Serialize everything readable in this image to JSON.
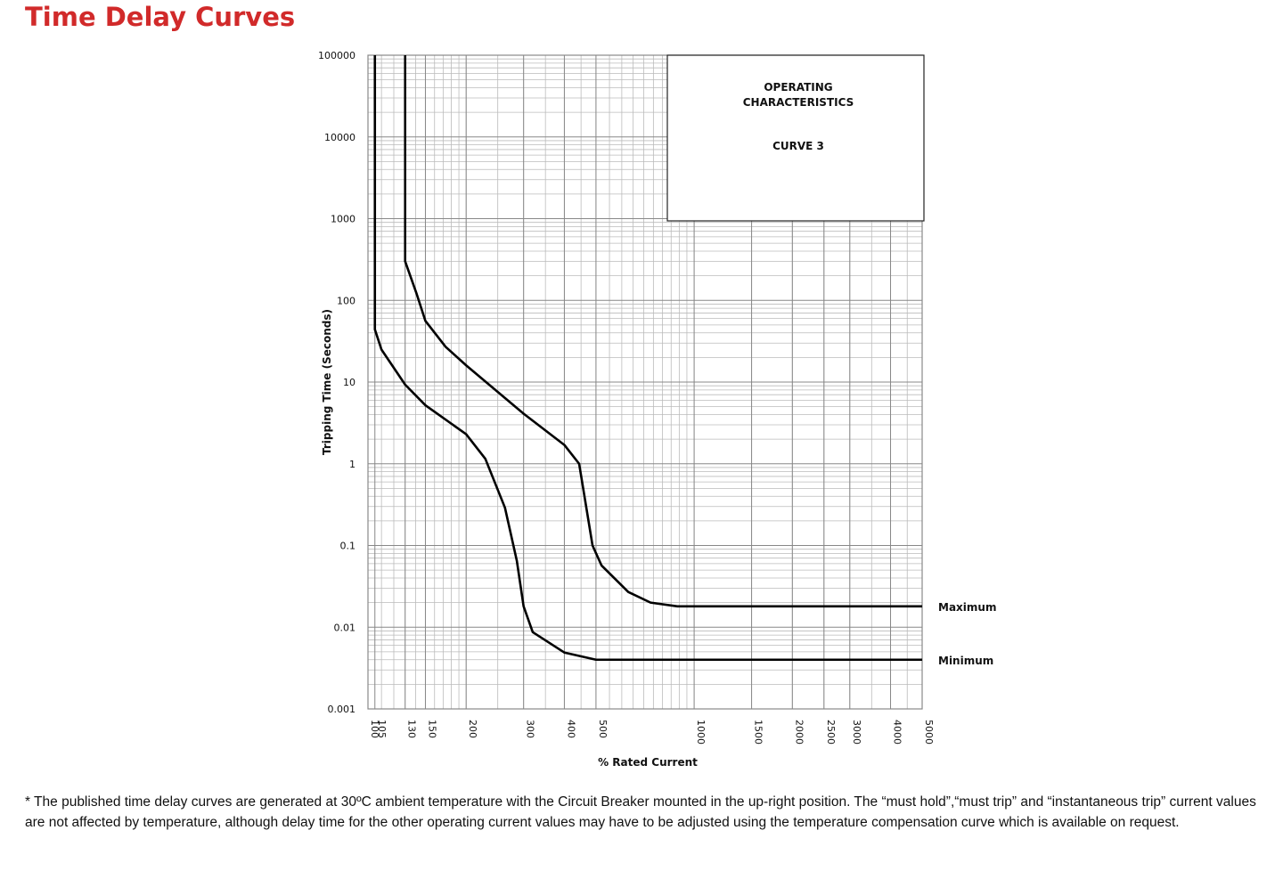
{
  "chart_data": {
    "type": "line",
    "title": "Time Delay Curves",
    "x_label": "% Rated Current",
    "y_label": "Tripping Time (Seconds)",
    "x_log": true,
    "y_log": true,
    "grid": true,
    "xlim": [
      100,
      5000
    ],
    "ylim": [
      0.001,
      100000
    ],
    "xticks": [
      100,
      105,
      130,
      150,
      200,
      300,
      400,
      500,
      1000,
      1500,
      2000,
      2500,
      3000,
      4000,
      5000
    ],
    "yticks": [
      0.001,
      0.01,
      0.1,
      1,
      10,
      100,
      1000,
      10000,
      100000
    ],
    "annotations": [
      "OPERATING",
      "CHARACTERISTICS",
      "CURVE 3"
    ],
    "series": [
      {
        "name": "Maximum",
        "color": "#000000",
        "x": [
          130,
          130,
          141,
          150,
          173,
          200,
          300,
          400,
          444,
          488,
          520,
          628,
          735,
          888,
          5000
        ],
        "values": [
          100000,
          300,
          120,
          56,
          27,
          16,
          4.1,
          1.7,
          1.0,
          0.1,
          0.057,
          0.027,
          0.02,
          0.018,
          0.018
        ]
      },
      {
        "name": "Minimum",
        "color": "#000000",
        "x": [
          105,
          105,
          110,
          130,
          150,
          200,
          229,
          263,
          286,
          300,
          320,
          400,
          500,
          5000
        ],
        "values": [
          100000,
          44,
          25,
          9.3,
          5.2,
          2.3,
          1.15,
          0.29,
          0.065,
          0.018,
          0.0087,
          0.0049,
          0.004,
          0.004
        ]
      }
    ]
  },
  "footnote": "* The published time delay curves are generated at 30ºC ambient temperature with the Circuit Breaker mounted in the up-right position. The “must hold”,“must trip” and “instantaneous trip” current values are not affected by temperature, although delay time for the other operating current values may have to be adjusted using the temperature compensation curve which is available on request."
}
